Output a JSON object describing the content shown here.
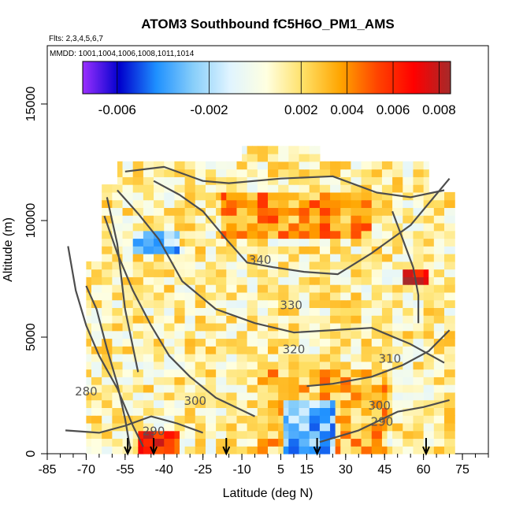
{
  "chart_data": {
    "type": "heatmap",
    "title": "ATOM3 Southbound fC5H6O_PM1_AMS",
    "subtitle_flts": "Flts: 2,3,4,5,6,7",
    "subtitle_mmdd": "MMDD: 1001,1004,1006,1008,1011,1014",
    "xlabel": "Latitude (deg N)",
    "ylabel": "Altitude (m)",
    "xlim": [
      -85,
      85
    ],
    "ylim": [
      0,
      17500
    ],
    "x_ticks": [
      -85,
      -70,
      -55,
      -40,
      -25,
      -10,
      5,
      15,
      30,
      45,
      60,
      75
    ],
    "x_tick_labels": [
      "-85",
      "-70",
      "-55",
      "-40",
      "-25",
      "-10",
      "5",
      "15",
      "30",
      "45",
      "60",
      "75"
    ],
    "y_ticks": [
      0,
      5000,
      10000,
      15000
    ],
    "y_tick_labels": [
      "0",
      "5000",
      "10000",
      "15000"
    ],
    "colorbar": {
      "range": [
        -0.0075,
        0.0085
      ],
      "ticks": [
        -0.006,
        -0.002,
        0.002,
        0.004,
        0.006,
        0.008
      ],
      "tick_labels": [
        "-0.006",
        "-0.002",
        "0.002",
        "0.004",
        "0.006",
        "0.008"
      ],
      "colors": [
        "#9b30ff",
        "#0000cd",
        "#1e90ff",
        "#87cefa",
        "#e0f4ff",
        "#ffffe0",
        "#ffe066",
        "#ffa500",
        "#ff4500",
        "#ff0000",
        "#a52a2a"
      ]
    },
    "contour_labels": [
      {
        "text": "340",
        "lat": -3,
        "alt": 8150
      },
      {
        "text": "330",
        "lat": 9,
        "alt": 6200
      },
      {
        "text": "320",
        "lat": 10,
        "alt": 4300
      },
      {
        "text": "310",
        "lat": 47,
        "alt": 3900
      },
      {
        "text": "300",
        "lat": -28,
        "alt": 2100
      },
      {
        "text": "300",
        "lat": 43,
        "alt": 1900
      },
      {
        "text": "290",
        "lat": -44,
        "alt": 800
      },
      {
        "text": "290",
        "lat": 44,
        "alt": 1200
      },
      {
        "text": "280",
        "lat": -70,
        "alt": 2500
      }
    ],
    "profile_arrows_lat": [
      -54,
      -44,
      -16,
      19,
      61
    ]
  }
}
